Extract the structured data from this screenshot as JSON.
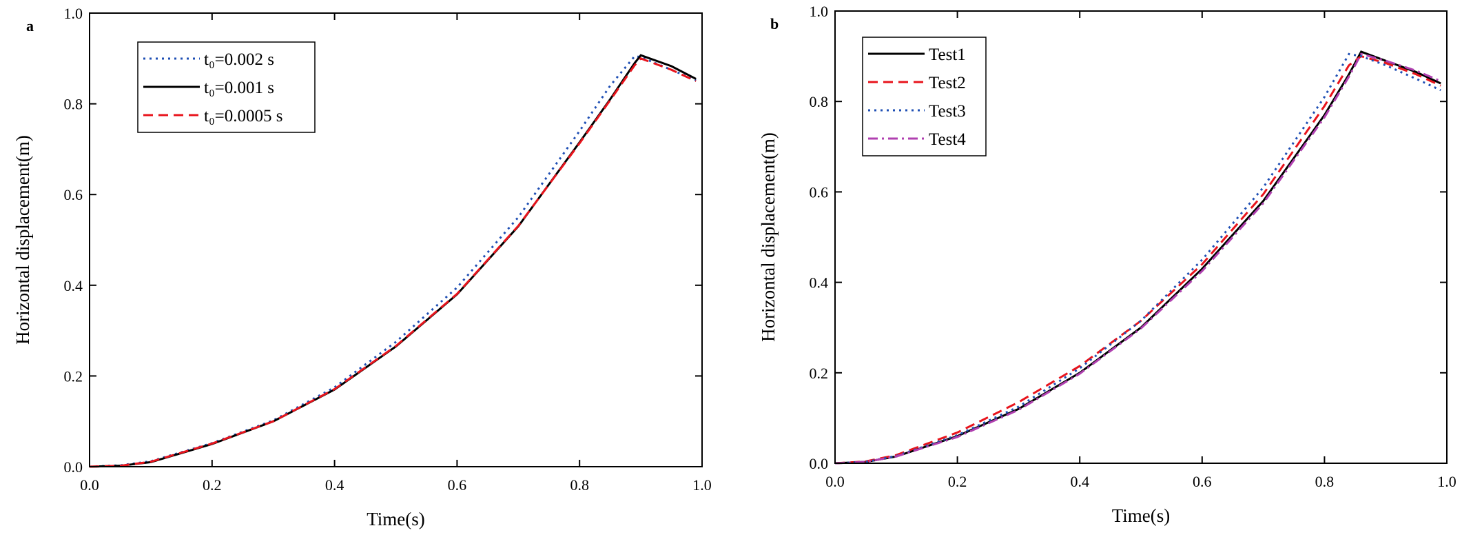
{
  "chart_data": [
    {
      "type": "line",
      "panel_label": "a",
      "x_label": "Time(s)",
      "y_label": "Horizontal displacement(m)",
      "x": [
        0,
        0.05,
        0.1,
        0.2,
        0.3,
        0.4,
        0.5,
        0.6,
        0.7,
        0.8,
        0.85,
        0.89,
        0.9,
        0.95,
        0.99
      ],
      "series": [
        {
          "name": "t₀=0.002 s",
          "color": "#1f4fb4",
          "style": "dotted",
          "values": [
            0,
            0.003,
            0.012,
            0.052,
            0.102,
            0.175,
            0.275,
            0.395,
            0.55,
            0.74,
            0.84,
            0.905,
            0.903,
            0.875,
            0.852
          ]
        },
        {
          "name": "t₀=0.001 s",
          "color": "#000000",
          "style": "solid",
          "values": [
            0,
            0.002,
            0.01,
            0.05,
            0.1,
            0.17,
            0.265,
            0.38,
            0.53,
            0.715,
            0.81,
            0.89,
            0.907,
            0.883,
            0.855
          ]
        },
        {
          "name": "t₀=0.0005 s",
          "color": "#e8141c",
          "style": "dashed",
          "values": [
            0,
            0.002,
            0.011,
            0.051,
            0.1,
            0.171,
            0.266,
            0.381,
            0.531,
            0.713,
            0.808,
            0.885,
            0.9,
            0.875,
            0.85
          ]
        }
      ],
      "xlim": [
        0,
        1
      ],
      "ylim": [
        0,
        1
      ],
      "xticks": [
        {
          "value": 0,
          "label": "0.0"
        },
        0.2,
        0.4,
        0.6,
        0.8,
        {
          "value": 1,
          "label": "1.0"
        }
      ],
      "yticks": [
        {
          "value": 0,
          "label": "0.0"
        },
        0.2,
        0.4,
        0.6,
        0.8,
        {
          "value": 1,
          "label": "1.0"
        }
      ],
      "legend": "upper left",
      "grid": false
    },
    {
      "type": "line",
      "panel_label": "b",
      "x_label": "Time(s)",
      "y_label": "Horizontal displacement(m)",
      "x": [
        0,
        0.05,
        0.1,
        0.2,
        0.3,
        0.4,
        0.5,
        0.6,
        0.7,
        0.8,
        0.84,
        0.86,
        0.9,
        0.95,
        0.99
      ],
      "series": [
        {
          "name": "Test1",
          "color": "#000000",
          "style": "solid",
          "values": [
            0,
            0.003,
            0.015,
            0.06,
            0.12,
            0.2,
            0.3,
            0.43,
            0.58,
            0.77,
            0.86,
            0.91,
            0.89,
            0.865,
            0.84
          ]
        },
        {
          "name": "Test2",
          "color": "#e8141c",
          "style": "dashed",
          "values": [
            0,
            0.004,
            0.018,
            0.068,
            0.135,
            0.215,
            0.315,
            0.44,
            0.595,
            0.79,
            0.88,
            0.9,
            0.885,
            0.86,
            0.835
          ]
        },
        {
          "name": "Test3",
          "color": "#1f4fb4",
          "style": "dotted",
          "values": [
            0,
            0.003,
            0.016,
            0.062,
            0.125,
            0.21,
            0.315,
            0.45,
            0.61,
            0.81,
            0.905,
            0.9,
            0.88,
            0.85,
            0.825
          ]
        },
        {
          "name": "Test4",
          "color": "#b040b0",
          "style": "dashdot",
          "values": [
            0,
            0.003,
            0.015,
            0.058,
            0.118,
            0.198,
            0.298,
            0.425,
            0.575,
            0.765,
            0.855,
            0.905,
            0.89,
            0.868,
            0.845
          ]
        }
      ],
      "xlim": [
        0,
        1
      ],
      "ylim": [
        0,
        1
      ],
      "xticks": [
        {
          "value": 0,
          "label": "0.0"
        },
        0.2,
        0.4,
        0.6,
        0.8,
        {
          "value": 1,
          "label": "1.0"
        }
      ],
      "yticks": [
        {
          "value": 0,
          "label": "0.0"
        },
        0.2,
        0.4,
        0.6,
        0.8,
        {
          "value": 1,
          "label": "1.0"
        }
      ],
      "legend": "upper left",
      "grid": false
    }
  ]
}
